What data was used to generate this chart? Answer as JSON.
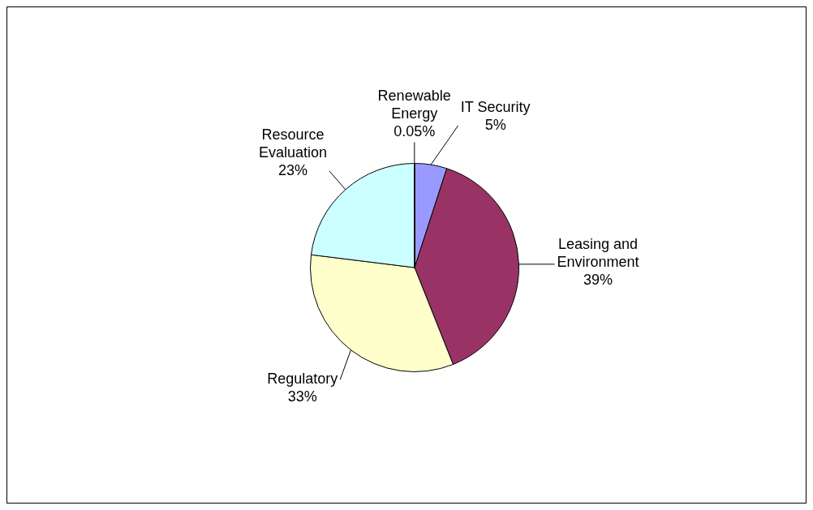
{
  "chart_data": {
    "type": "pie",
    "categories": [
      "IT Security",
      "Leasing and Environment",
      "Regulatory",
      "Resource Evaluation",
      "Renewable Energy"
    ],
    "values": [
      5,
      39,
      33,
      23,
      0.05
    ],
    "value_labels": [
      "5%",
      "39%",
      "33%",
      "23%",
      "0.05%"
    ],
    "colors": [
      "#9999ff",
      "#993366",
      "#ffffcc",
      "#ccffff",
      "#660066"
    ],
    "legend": false
  }
}
